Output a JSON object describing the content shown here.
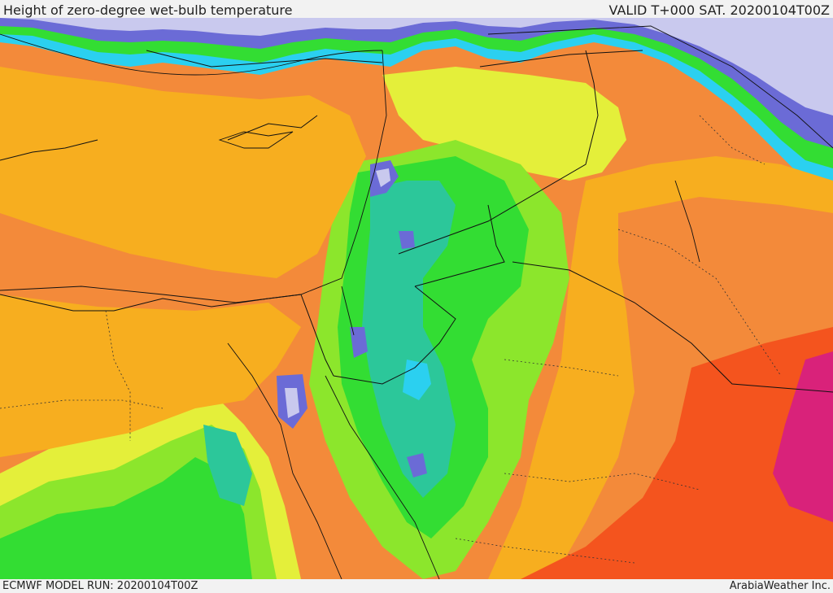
{
  "header": {
    "title": "Height of zero-degree wet-bulb temperature",
    "valid_time": "VALID T+000 SAT. 20200104T00Z"
  },
  "footer": {
    "model_run": "ECMWF MODEL RUN: 20200104T00Z",
    "credit": "ArabiaWeather Inc."
  },
  "map": {
    "variable": "zero-degree wet-bulb height",
    "palette": {
      "lowest": "#c9c9ee",
      "very_low": "#6b6bd6",
      "low": "#2bd0f0",
      "low_mid": "#2cc79a",
      "mid_low": "#33dd33",
      "mid": "#8ce62c",
      "mid_high": "#e4ef3a",
      "high": "#f7ae1f",
      "higher": "#f38a3a",
      "very_high": "#f4541e",
      "highest": "#d9227a"
    }
  }
}
